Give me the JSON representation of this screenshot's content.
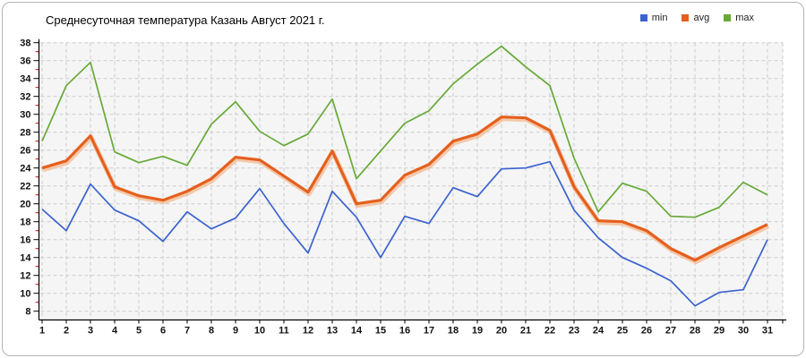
{
  "title": "Среднесуточная температура Казань  Август 2021 г.",
  "legend": [
    {
      "label": "min",
      "color": "#3b62cf"
    },
    {
      "label": "avg",
      "color": "#e5601d"
    },
    {
      "label": "max",
      "color": "#67a937"
    }
  ],
  "colors": {
    "plot_background": "#f5f5f5",
    "gridline": "#cccccc",
    "axis": "#000000",
    "minor_tick": "#cc1111",
    "avg_halo": "#f4b68c"
  },
  "chart_data": {
    "type": "line",
    "title": "Среднесуточная температура Казань  Август 2021 г.",
    "xlabel": "",
    "ylabel": "",
    "x": [
      1,
      2,
      3,
      4,
      5,
      6,
      7,
      8,
      9,
      10,
      11,
      12,
      13,
      14,
      15,
      16,
      17,
      18,
      19,
      20,
      21,
      22,
      23,
      24,
      25,
      26,
      27,
      28,
      29,
      30,
      31
    ],
    "xlim": [
      1,
      31
    ],
    "ylim": [
      8,
      38
    ],
    "ytick_step": 2,
    "yticks": [
      8,
      10,
      12,
      14,
      16,
      18,
      20,
      22,
      24,
      26,
      28,
      30,
      32,
      34,
      36,
      38
    ],
    "grid": true,
    "grid_style": "dashed",
    "legend_position": "top-right",
    "series": [
      {
        "name": "min",
        "color": "#3b62cf",
        "width": 1.7,
        "values": [
          19.4,
          17.0,
          22.2,
          19.3,
          18.1,
          15.8,
          19.1,
          17.2,
          18.4,
          21.7,
          17.8,
          14.5,
          21.4,
          18.5,
          14.0,
          18.6,
          17.8,
          21.8,
          20.8,
          23.9,
          24.0,
          24.7,
          19.3,
          16.2,
          14.0,
          12.8,
          11.4,
          8.6,
          10.1,
          10.4,
          16.0
        ]
      },
      {
        "name": "avg",
        "color": "#e5601d",
        "width": 3.2,
        "values": [
          24.0,
          24.8,
          27.6,
          21.9,
          20.9,
          20.4,
          21.4,
          22.8,
          25.2,
          24.9,
          23.1,
          21.3,
          25.9,
          20.0,
          20.4,
          23.2,
          24.4,
          27.0,
          27.8,
          29.7,
          29.6,
          28.2,
          21.9,
          18.1,
          18.0,
          17.0,
          15.0,
          13.7,
          15.1,
          16.4,
          17.7
        ]
      },
      {
        "name": "max",
        "color": "#67a937",
        "width": 1.7,
        "values": [
          27.0,
          33.2,
          35.8,
          25.8,
          24.6,
          25.3,
          24.3,
          28.9,
          31.4,
          28.1,
          26.5,
          27.8,
          31.7,
          22.8,
          25.9,
          29.0,
          30.4,
          33.4,
          35.6,
          37.6,
          35.3,
          33.2,
          25.1,
          19.1,
          22.3,
          21.4,
          18.6,
          18.5,
          19.6,
          22.4,
          21.0
        ]
      }
    ]
  }
}
